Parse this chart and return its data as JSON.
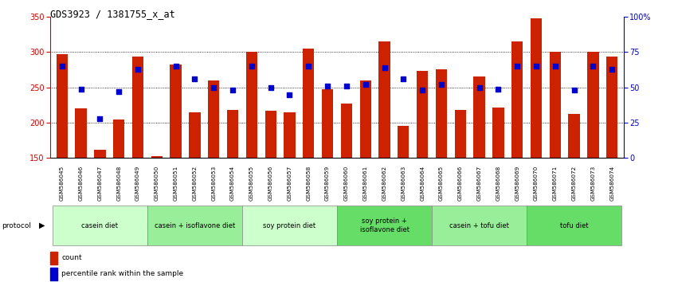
{
  "title": "GDS3923 / 1381755_x_at",
  "samples": [
    "GSM586045",
    "GSM586046",
    "GSM586047",
    "GSM586048",
    "GSM586049",
    "GSM586050",
    "GSM586051",
    "GSM586052",
    "GSM586053",
    "GSM586054",
    "GSM586055",
    "GSM586056",
    "GSM586057",
    "GSM586058",
    "GSM586059",
    "GSM586060",
    "GSM586061",
    "GSM586062",
    "GSM586063",
    "GSM586064",
    "GSM586065",
    "GSM586066",
    "GSM586067",
    "GSM586068",
    "GSM586069",
    "GSM586070",
    "GSM586071",
    "GSM586072",
    "GSM586073",
    "GSM586074"
  ],
  "counts": [
    297,
    220,
    162,
    204,
    294,
    153,
    282,
    215,
    260,
    218,
    300,
    217,
    215,
    305,
    248,
    227,
    260,
    315,
    195,
    274,
    276,
    218,
    265,
    222,
    315,
    348,
    300,
    212,
    300,
    294
  ],
  "percentile_ranks": [
    65,
    49,
    28,
    47,
    63,
    null,
    65,
    56,
    50,
    48,
    65,
    50,
    45,
    65,
    51,
    51,
    52,
    64,
    56,
    48,
    52,
    null,
    50,
    49,
    65,
    65,
    65,
    48,
    65,
    63
  ],
  "protocols": [
    {
      "label": "casein diet",
      "start": 0,
      "end": 5,
      "color": "#ccffcc"
    },
    {
      "label": "casein + isoflavone diet",
      "start": 5,
      "end": 10,
      "color": "#99ee99"
    },
    {
      "label": "soy protein diet",
      "start": 10,
      "end": 15,
      "color": "#ccffcc"
    },
    {
      "label": "soy protein +\nisoflavone diet",
      "start": 15,
      "end": 20,
      "color": "#66dd66"
    },
    {
      "label": "casein + tofu diet",
      "start": 20,
      "end": 25,
      "color": "#99ee99"
    },
    {
      "label": "tofu diet",
      "start": 25,
      "end": 30,
      "color": "#66dd66"
    }
  ],
  "ylim_left": [
    150,
    350
  ],
  "ylim_right": [
    0,
    100
  ],
  "bar_color": "#cc2200",
  "dot_color": "#0000cc",
  "left_axis_color": "#cc0000",
  "right_axis_color": "#0000cc",
  "bg_color": "#ffffff"
}
